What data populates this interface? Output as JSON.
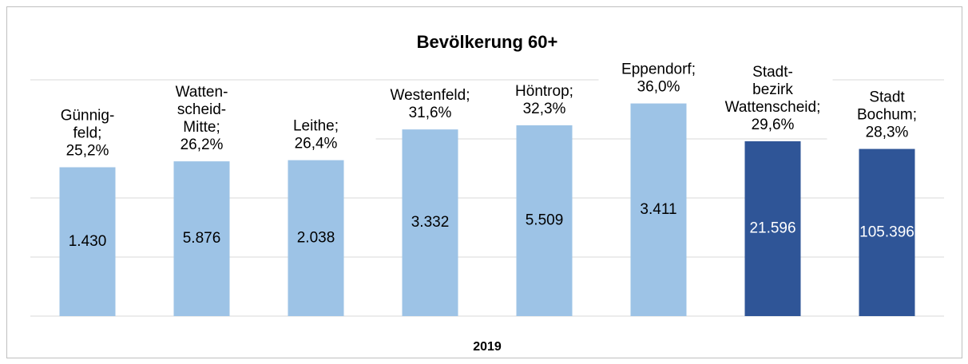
{
  "chart_data": {
    "type": "bar",
    "title": "Bevölkerung 60+",
    "xlabel": "2019",
    "categories": [
      [
        "Günnig-",
        "feld"
      ],
      [
        "Watten-",
        "scheid-",
        "Mitte"
      ],
      [
        "Leithe"
      ],
      [
        "Westenfeld"
      ],
      [
        "Höntrop"
      ],
      [
        "Eppendorf"
      ],
      [
        "Stadt-",
        "bezirk",
        "Wattenscheid"
      ],
      [
        "Stadt",
        "Bochum"
      ]
    ],
    "separator": ";",
    "values": [
      25.2,
      26.2,
      26.4,
      31.6,
      32.3,
      36.0,
      29.6,
      28.3
    ],
    "value_labels": [
      "25,2%",
      "26,2%",
      "26,4%",
      "31,6%",
      "32,3%",
      "36,0%",
      "29,6%",
      "28,3%"
    ],
    "inner_labels": [
      "1.430",
      "5.876",
      "2.038",
      "3.332",
      "5.509",
      "3.411",
      "21.596",
      "105.396"
    ],
    "colors": [
      "#9dc3e6",
      "#9dc3e6",
      "#9dc3e6",
      "#9dc3e6",
      "#9dc3e6",
      "#9dc3e6",
      "#2f5597",
      "#2f5597"
    ],
    "ylim": [
      0,
      40
    ],
    "yticks": [
      0,
      10,
      20,
      30,
      40
    ],
    "grid": true
  }
}
